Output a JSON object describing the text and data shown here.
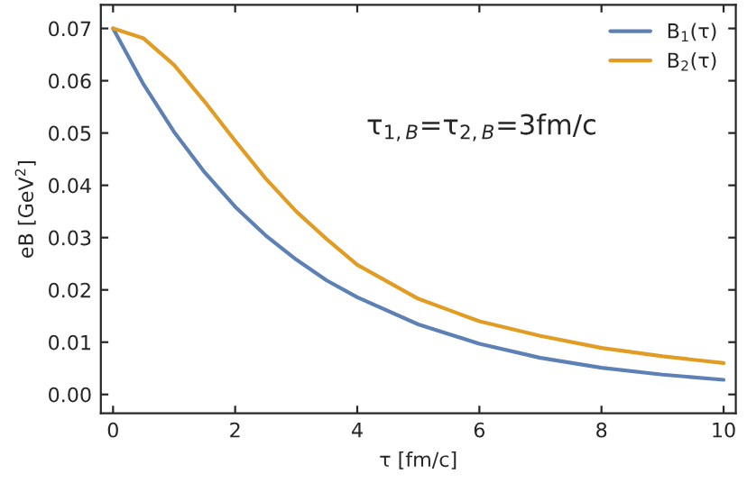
{
  "chart_data": {
    "type": "line",
    "xlabel": "τ [fm/c]",
    "ylabel": "eB [GeV$^{2}$]",
    "annotations": [
      "τ$_{1,B}$=τ$_{2,B}$=3fm/c"
    ],
    "xlim": [
      -0.2,
      10.2
    ],
    "xticks": [
      0,
      2,
      4,
      6,
      8,
      10
    ],
    "ylim": [
      -0.0036,
      0.0745
    ],
    "yticks": [
      {
        "value": 0,
        "label": "0.00"
      },
      {
        "value": 0.01,
        "label": "0.01"
      },
      {
        "value": 0.02,
        "label": "0.02"
      },
      {
        "value": 0.03,
        "label": "0.03"
      },
      {
        "value": 0.04,
        "label": "0.04"
      },
      {
        "value": 0.05,
        "label": "0.05"
      },
      {
        "value": 0.06,
        "label": "0.06"
      },
      {
        "value": 0.07,
        "label": "0.07"
      }
    ],
    "legend": "top right",
    "grid": false,
    "series": [
      {
        "name": "B$_{1}$(τ)",
        "color": "#5e81b5",
        "x": [
          0,
          0.5,
          1,
          1.5,
          2,
          2.5,
          3,
          3.5,
          4,
          5,
          6,
          7,
          8,
          9,
          10
        ],
        "values": [
          0.07,
          0.0593,
          0.0502,
          0.0425,
          0.0359,
          0.0304,
          0.0258,
          0.0218,
          0.0186,
          0.0134,
          0.0097,
          0.007,
          0.0051,
          0.0038,
          0.0028
        ]
      },
      {
        "name": "B$_{2}$(τ)",
        "color": "#e19c24",
        "x": [
          0,
          0.5,
          1,
          1.5,
          2,
          2.5,
          3,
          3.5,
          4,
          5,
          6,
          7,
          8,
          9,
          10
        ],
        "values": [
          0.07,
          0.0681,
          0.063,
          0.056,
          0.0485,
          0.0413,
          0.035,
          0.0297,
          0.0248,
          0.0183,
          0.014,
          0.0112,
          0.0089,
          0.0073,
          0.006
        ]
      }
    ]
  }
}
